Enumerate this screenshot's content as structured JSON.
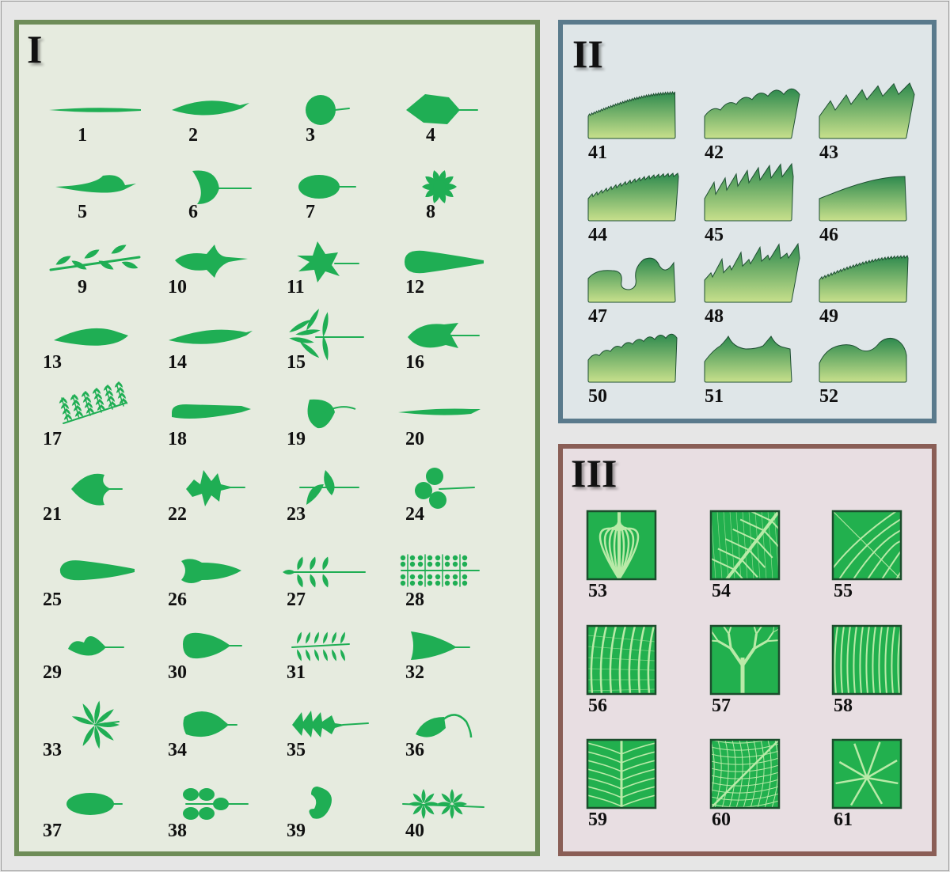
{
  "colors": {
    "leaf": "#1fae54",
    "panel_I_border": "#6e8c58",
    "panel_II_border": "#5a7a8c",
    "panel_III_border": "#8a5e56",
    "margin_gradient_top": "#2e8a4e",
    "margin_gradient_bottom": "#c8e08c",
    "venation_bg": "#22b04e",
    "venation_vein": "#b9eaa8",
    "venation_border": "#1b4d2c"
  },
  "panels": [
    {
      "id": "I",
      "title": "I",
      "items": [
        {
          "num": "1",
          "shape": "needle"
        },
        {
          "num": "2",
          "shape": "lanceolate"
        },
        {
          "num": "3",
          "shape": "orbicular"
        },
        {
          "num": "4",
          "shape": "rhomboid"
        },
        {
          "num": "5",
          "shape": "ovate-long"
        },
        {
          "num": "6",
          "shape": "flabellate"
        },
        {
          "num": "7",
          "shape": "elliptic"
        },
        {
          "num": "8",
          "shape": "rosette"
        },
        {
          "num": "9",
          "shape": "pinnate-alternate"
        },
        {
          "num": "10",
          "shape": "hastate"
        },
        {
          "num": "11",
          "shape": "palmate-lobed"
        },
        {
          "num": "12",
          "shape": "spatulate"
        },
        {
          "num": "13",
          "shape": "ovate"
        },
        {
          "num": "14",
          "shape": "lanceolate-narrow"
        },
        {
          "num": "15",
          "shape": "palmate-compound"
        },
        {
          "num": "16",
          "shape": "sagittate"
        },
        {
          "num": "17",
          "shape": "bipinnate"
        },
        {
          "num": "18",
          "shape": "linear"
        },
        {
          "num": "19",
          "shape": "peltate"
        },
        {
          "num": "20",
          "shape": "subulate"
        },
        {
          "num": "21",
          "shape": "cordate"
        },
        {
          "num": "22",
          "shape": "pinnatifid"
        },
        {
          "num": "23",
          "shape": "perfoliate"
        },
        {
          "num": "24",
          "shape": "trifoliate"
        },
        {
          "num": "25",
          "shape": "oblanceolate"
        },
        {
          "num": "26",
          "shape": "reniform-base"
        },
        {
          "num": "27",
          "shape": "pinnate-opposite"
        },
        {
          "num": "28",
          "shape": "tripinnate"
        },
        {
          "num": "29",
          "shape": "deltoid"
        },
        {
          "num": "30",
          "shape": "obovate"
        },
        {
          "num": "31",
          "shape": "pinnate-many"
        },
        {
          "num": "32",
          "shape": "truncate"
        },
        {
          "num": "33",
          "shape": "palmate-digitate"
        },
        {
          "num": "34",
          "shape": "rhombic"
        },
        {
          "num": "35",
          "shape": "runcinate"
        },
        {
          "num": "36",
          "shape": "acuminate-tail"
        },
        {
          "num": "37",
          "shape": "oval"
        },
        {
          "num": "38",
          "shape": "ternate-pairs"
        },
        {
          "num": "39",
          "shape": "reniform"
        },
        {
          "num": "40",
          "shape": "palmate-whorls"
        }
      ]
    },
    {
      "id": "II",
      "title": "II",
      "items": [
        {
          "num": "41",
          "margin": "ciliate"
        },
        {
          "num": "42",
          "margin": "crenate"
        },
        {
          "num": "43",
          "margin": "dentate"
        },
        {
          "num": "44",
          "margin": "serrulate"
        },
        {
          "num": "45",
          "margin": "serrate"
        },
        {
          "num": "46",
          "margin": "entire"
        },
        {
          "num": "47",
          "margin": "lobed"
        },
        {
          "num": "48",
          "margin": "doubly-serrate"
        },
        {
          "num": "49",
          "margin": "denticulate"
        },
        {
          "num": "50",
          "margin": "crenulate"
        },
        {
          "num": "51",
          "margin": "spiny"
        },
        {
          "num": "52",
          "margin": "undulate"
        }
      ]
    },
    {
      "id": "III",
      "title": "III",
      "items": [
        {
          "num": "53",
          "venation": "arcuate"
        },
        {
          "num": "54",
          "venation": "pinnate-reticulate"
        },
        {
          "num": "55",
          "venation": "cross"
        },
        {
          "num": "56",
          "venation": "longitudinal"
        },
        {
          "num": "57",
          "venation": "dichotomous"
        },
        {
          "num": "58",
          "venation": "parallel"
        },
        {
          "num": "59",
          "venation": "pinnate"
        },
        {
          "num": "60",
          "venation": "reticulate"
        },
        {
          "num": "61",
          "venation": "palmate"
        }
      ]
    }
  ]
}
